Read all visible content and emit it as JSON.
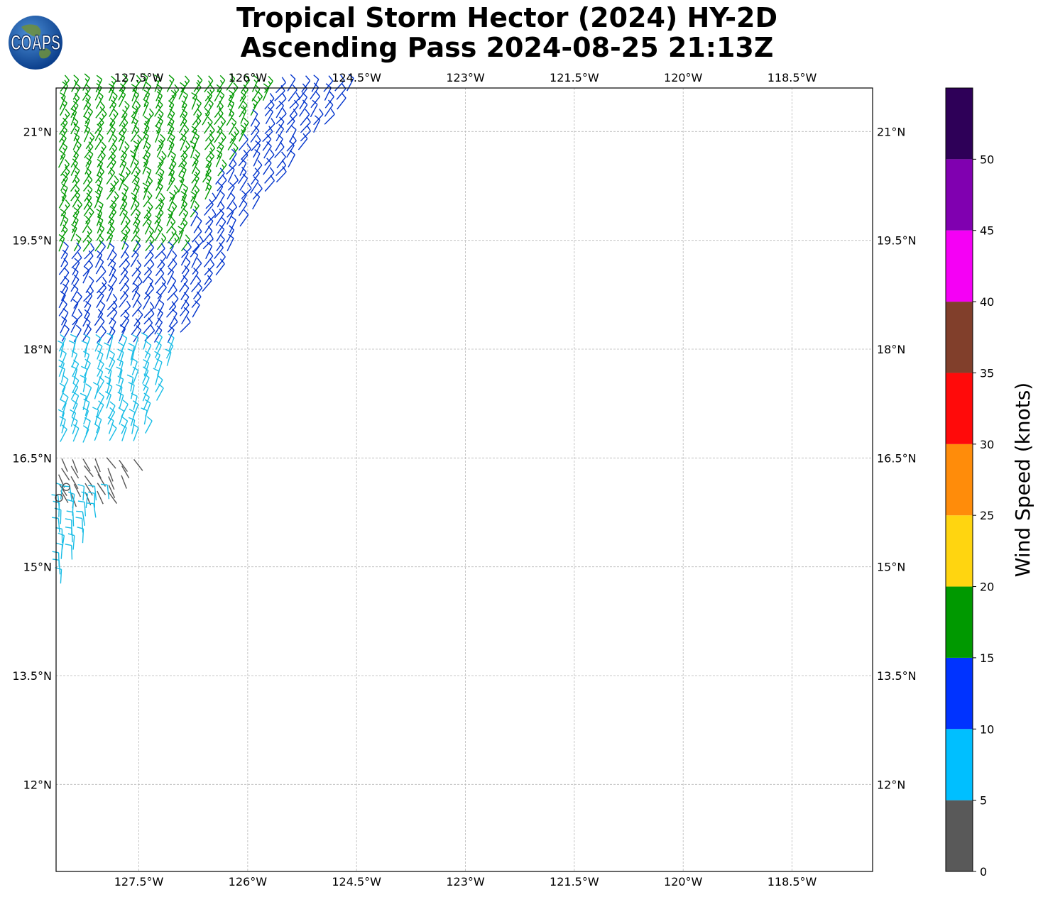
{
  "title": {
    "line1": "Tropical Storm Hector (2024) HY-2D",
    "line2": "Ascending Pass 2024-08-25 21:13Z"
  },
  "logo": {
    "text": "COAPS",
    "icon": "globe-icon"
  },
  "map": {
    "lon_ticks": [
      "127.5°W",
      "126°W",
      "124.5°W",
      "123°W",
      "121.5°W",
      "120°W",
      "118.5°W"
    ],
    "lon_values": [
      -127.5,
      -126,
      -124.5,
      -123,
      -121.5,
      -120,
      -118.5
    ],
    "lat_ticks": [
      "21°N",
      "19.5°N",
      "18°N",
      "16.5°N",
      "15°N",
      "13.5°N",
      "12°N"
    ],
    "lat_values": [
      21,
      19.5,
      18,
      16.5,
      15,
      13.5,
      12
    ],
    "extent": {
      "lon_min": -128.64,
      "lon_max": -117.39,
      "lat_min": 10.8,
      "lat_max": 21.6
    },
    "grid": true
  },
  "colorbar": {
    "label": "Wind Speed (knots)",
    "ticks": [
      "0",
      "5",
      "10",
      "15",
      "20",
      "25",
      "30",
      "35",
      "40",
      "45",
      "50"
    ],
    "bins": [
      {
        "min": 0,
        "max": 5,
        "color": "#595959"
      },
      {
        "min": 5,
        "max": 10,
        "color": "#00bfff"
      },
      {
        "min": 10,
        "max": 15,
        "color": "#0033ff"
      },
      {
        "min": 15,
        "max": 20,
        "color": "#009900"
      },
      {
        "min": 20,
        "max": 25,
        "color": "#ffd510"
      },
      {
        "min": 25,
        "max": 30,
        "color": "#ff8c0a"
      },
      {
        "min": 30,
        "max": 35,
        "color": "#ff0a0a"
      },
      {
        "min": 35,
        "max": 40,
        "color": "#813f2b"
      },
      {
        "min": 40,
        "max": 45,
        "color": "#f500f5"
      },
      {
        "min": 45,
        "max": 50,
        "color": "#8000b0"
      },
      {
        "min": 50,
        "max": 55,
        "color": "#2e0058"
      }
    ]
  },
  "wind_barbs": {
    "swath_east_edge": [
      {
        "lat": 21.6,
        "lon": -124.5
      },
      {
        "lat": 19.8,
        "lon": -126.0
      },
      {
        "lat": 18.0,
        "lon": -127.0
      },
      {
        "lat": 16.6,
        "lon": -127.5
      },
      {
        "lat": 14.7,
        "lon": -128.6
      }
    ],
    "speed_bands": [
      {
        "lat_min": 19.3,
        "lat_max": 21.6,
        "speed_kt": 16,
        "direction_deg": 60
      },
      {
        "lat_min": 18.1,
        "lat_max": 21.6,
        "speed_kt": 12,
        "direction_deg": 55
      },
      {
        "lat_min": 16.7,
        "lat_max": 18.1,
        "speed_kt": 8,
        "direction_deg": 70
      },
      {
        "lat_min": 16.0,
        "lat_max": 16.6,
        "speed_kt": 3,
        "direction_deg": 300
      },
      {
        "lat_min": 14.7,
        "lat_max": 16.0,
        "speed_kt": 7,
        "direction_deg": 90
      }
    ]
  }
}
